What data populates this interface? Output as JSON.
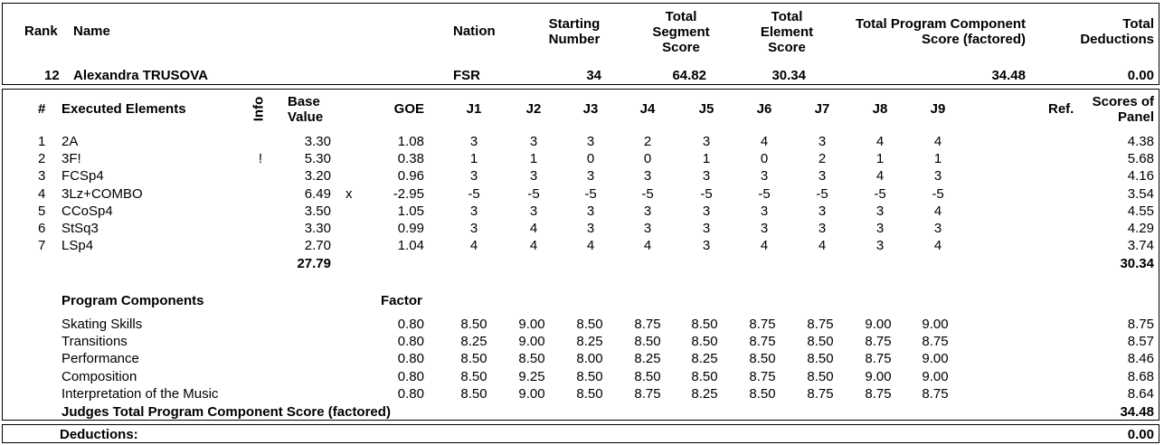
{
  "header": {
    "rank_label": "Rank",
    "name_label": "Name",
    "nation_label": "Nation",
    "starting_label": [
      "Starting",
      "Number"
    ],
    "tss_label": [
      "Total",
      "Segment",
      "Score"
    ],
    "tes_label": [
      "Total",
      "Element",
      "Score"
    ],
    "pcs_label": [
      "Total Program Component",
      "Score (factored)"
    ],
    "ded_label": [
      "Total",
      "Deductions"
    ]
  },
  "skater": {
    "rank": "12",
    "name": "Alexandra TRUSOVA",
    "nation": "FSR",
    "starting_number": "34",
    "tss": "64.82",
    "tes": "30.34",
    "pcs": "34.48",
    "deductions": "0.00"
  },
  "elements_header": {
    "num": "#",
    "executed": "Executed Elements",
    "info": "Info",
    "base": [
      "Base",
      "Value"
    ],
    "goe": "GOE",
    "judges": [
      "J1",
      "J2",
      "J3",
      "J4",
      "J5",
      "J6",
      "J7",
      "J8",
      "J9"
    ],
    "ref": "Ref.",
    "panel": [
      "Scores of",
      "Panel"
    ]
  },
  "elements": [
    {
      "num": "1",
      "name": "2A",
      "info": "",
      "base": "3.30",
      "x": "",
      "goe": "1.08",
      "j": [
        "3",
        "3",
        "3",
        "2",
        "3",
        "4",
        "3",
        "4",
        "4"
      ],
      "panel": "4.38"
    },
    {
      "num": "2",
      "name": "3F!",
      "info": "!",
      "base": "5.30",
      "x": "",
      "goe": "0.38",
      "j": [
        "1",
        "1",
        "0",
        "0",
        "1",
        "0",
        "2",
        "1",
        "1"
      ],
      "panel": "5.68"
    },
    {
      "num": "3",
      "name": "FCSp4",
      "info": "",
      "base": "3.20",
      "x": "",
      "goe": "0.96",
      "j": [
        "3",
        "3",
        "3",
        "3",
        "3",
        "3",
        "3",
        "4",
        "3"
      ],
      "panel": "4.16"
    },
    {
      "num": "4",
      "name": "3Lz+COMBO",
      "info": "",
      "base": "6.49",
      "x": "x",
      "goe": "-2.95",
      "j": [
        "-5",
        "-5",
        "-5",
        "-5",
        "-5",
        "-5",
        "-5",
        "-5",
        "-5"
      ],
      "panel": "3.54"
    },
    {
      "num": "5",
      "name": "CCoSp4",
      "info": "",
      "base": "3.50",
      "x": "",
      "goe": "1.05",
      "j": [
        "3",
        "3",
        "3",
        "3",
        "3",
        "3",
        "3",
        "3",
        "4"
      ],
      "panel": "4.55"
    },
    {
      "num": "6",
      "name": "StSq3",
      "info": "",
      "base": "3.30",
      "x": "",
      "goe": "0.99",
      "j": [
        "3",
        "4",
        "3",
        "3",
        "3",
        "3",
        "3",
        "3",
        "3"
      ],
      "panel": "4.29"
    },
    {
      "num": "7",
      "name": "LSp4",
      "info": "",
      "base": "2.70",
      "x": "",
      "goe": "1.04",
      "j": [
        "4",
        "4",
        "4",
        "4",
        "3",
        "4",
        "4",
        "3",
        "4"
      ],
      "panel": "3.74"
    }
  ],
  "elements_totals": {
    "base": "27.79",
    "panel": "30.34"
  },
  "pc_header": {
    "title": "Program Components",
    "factor": "Factor"
  },
  "components": [
    {
      "name": "Skating Skills",
      "factor": "0.80",
      "j": [
        "8.50",
        "9.00",
        "8.50",
        "8.75",
        "8.50",
        "8.75",
        "8.75",
        "9.00",
        "9.00"
      ],
      "panel": "8.75"
    },
    {
      "name": "Transitions",
      "factor": "0.80",
      "j": [
        "8.25",
        "9.00",
        "8.25",
        "8.50",
        "8.50",
        "8.75",
        "8.50",
        "8.75",
        "8.75"
      ],
      "panel": "8.57"
    },
    {
      "name": "Performance",
      "factor": "0.80",
      "j": [
        "8.50",
        "8.50",
        "8.00",
        "8.25",
        "8.25",
        "8.50",
        "8.50",
        "8.75",
        "9.00"
      ],
      "panel": "8.46"
    },
    {
      "name": "Composition",
      "factor": "0.80",
      "j": [
        "8.50",
        "9.25",
        "8.50",
        "8.50",
        "8.50",
        "8.75",
        "8.50",
        "9.00",
        "9.00"
      ],
      "panel": "8.68"
    },
    {
      "name": "Interpretation of the Music",
      "factor": "0.80",
      "j": [
        "8.50",
        "9.00",
        "8.50",
        "8.75",
        "8.25",
        "8.50",
        "8.75",
        "8.75",
        "8.75"
      ],
      "panel": "8.64"
    }
  ],
  "pc_total": {
    "label": "Judges Total Program Component Score (factored)",
    "value": "34.48"
  },
  "deductions_row": {
    "label": "Deductions:",
    "value": "0.00"
  }
}
